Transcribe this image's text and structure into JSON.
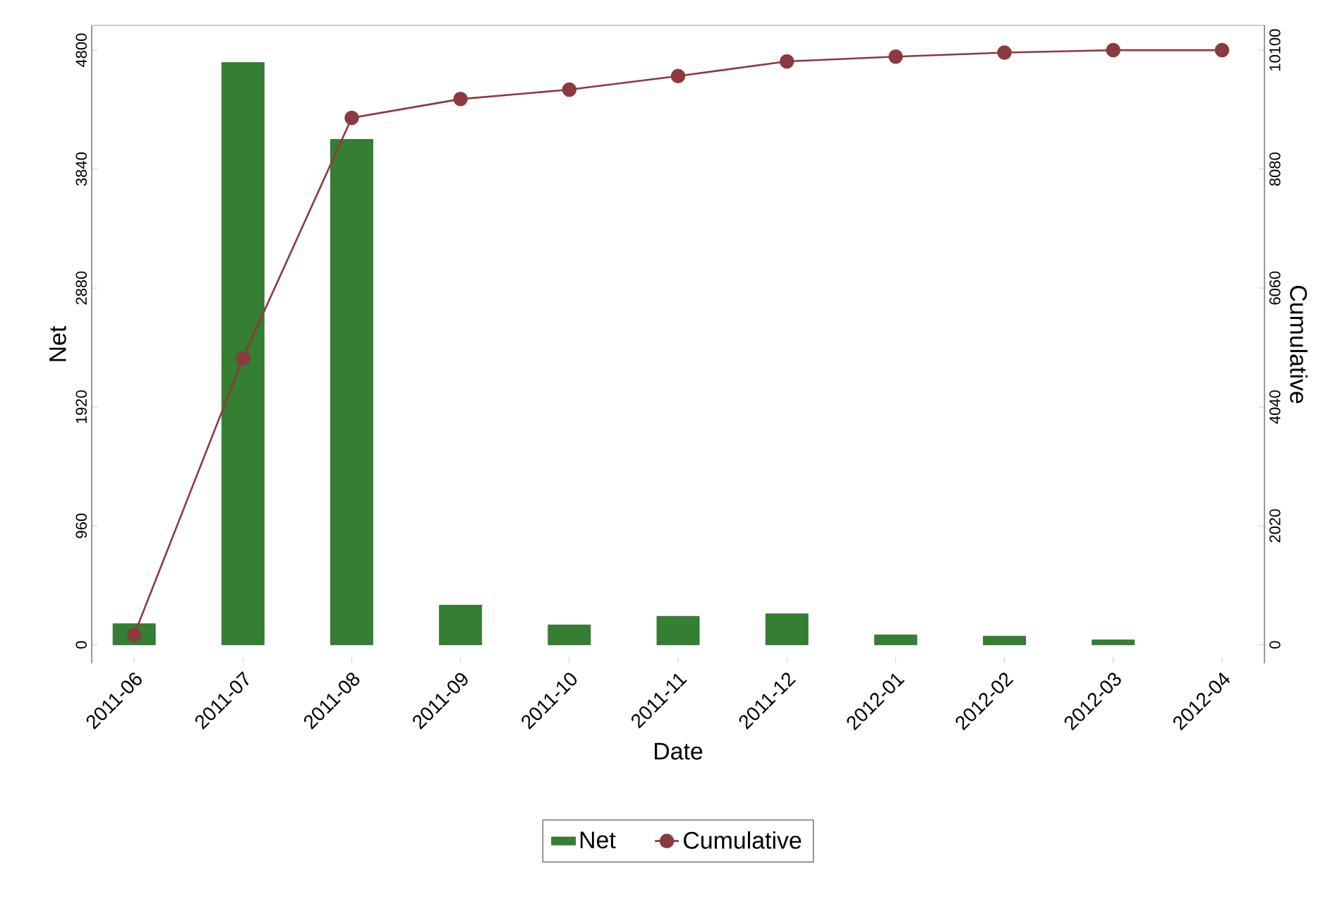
{
  "chart_data": {
    "type": "bar",
    "xlabel": "Date",
    "ylabel": "Net",
    "y2label": "Cumulative",
    "categories": [
      "2011-06",
      "2011-07",
      "2011-08",
      "2011-09",
      "2011-10",
      "2011-11",
      "2011-12",
      "2012-01",
      "2012-02",
      "2012-03",
      "2012-04"
    ],
    "series": [
      {
        "name": "Net",
        "color": "#357e32",
        "values": [
          170,
          4700,
          4080,
          320,
          160,
          230,
          250,
          80,
          70,
          40,
          null
        ]
      },
      {
        "name": "Cumulative",
        "type": "line",
        "axis": "y2",
        "color": "#8b3a3e",
        "marker": "circle",
        "values": [
          170,
          4870,
          8950,
          9270,
          9430,
          9660,
          9910,
          9990,
          10060,
          10100,
          10100
        ]
      }
    ],
    "ylim": [
      -150,
      5000
    ],
    "yticks": [
      0,
      960,
      1920,
      2880,
      3840,
      4800
    ],
    "y2lim": [
      -316,
      10521
    ],
    "y2ticks": [
      0,
      2020,
      4040,
      6060,
      8080,
      10100
    ],
    "grid": false,
    "legend": "bottom"
  }
}
